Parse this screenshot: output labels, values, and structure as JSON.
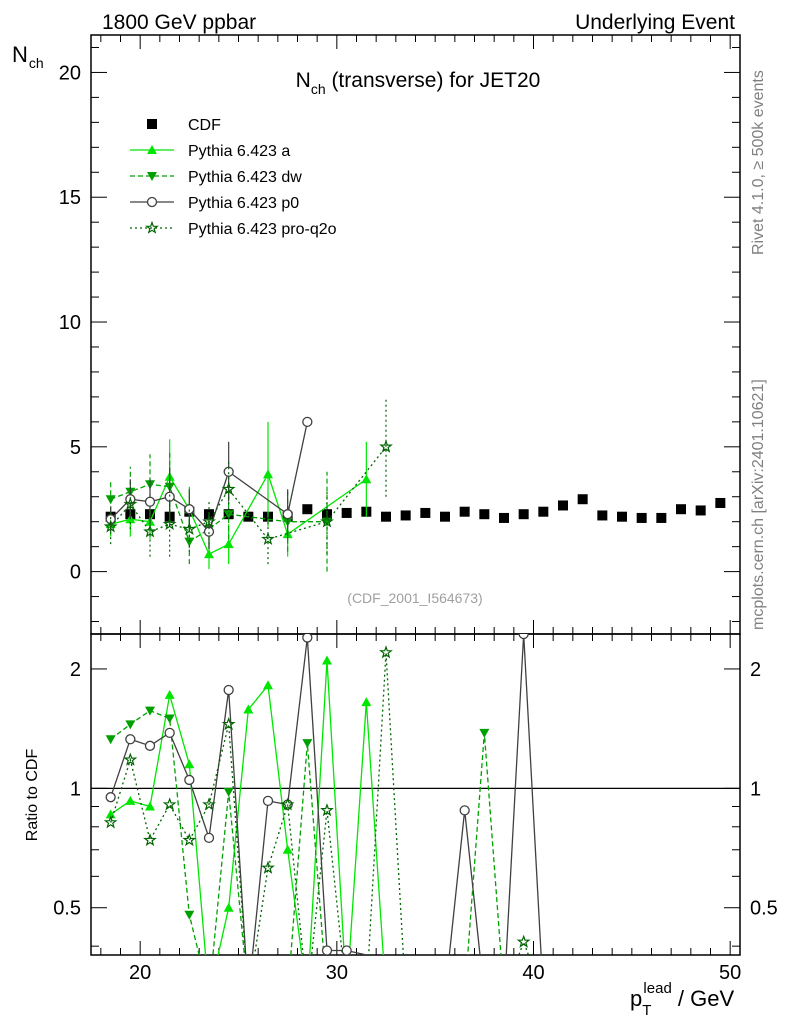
{
  "header": {
    "left": "1800 GeV ppbar",
    "right": "Underlying Event"
  },
  "side": {
    "rivet": "Rivet 4.1.0, ≥ 500k events",
    "mcplots": "mcplots.cern.ch [arXiv:2401.10621]"
  },
  "watermark": "(CDF_2001_I564673)",
  "colors": {
    "data": "#000000",
    "pythia_a": "#00e600",
    "pythia_dw": "#00a000",
    "pythia_p0": "#404040",
    "pythia_q2o": "#006400",
    "ratio_line": "#000000"
  },
  "chart_data": {
    "type": "scatter",
    "title_main": "N",
    "title_sub": "ch",
    "title_rest": " (transverse) for JET20",
    "ylabel_main": "N",
    "ylabel_sub": "ch",
    "ratio_ylabel": "Ratio to CDF",
    "xlabel_main": "p",
    "xlabel_sub": "T",
    "xlabel_sup": "lead",
    "xlabel_rest": " / GeV",
    "xlim": [
      17.5,
      50.5
    ],
    "ylim": [
      -2.5,
      21.5
    ],
    "ratio_ylim": [
      0.38,
      2.45
    ],
    "x_ticks": [
      20,
      30,
      40,
      50
    ],
    "y_ticks": [
      0,
      5,
      10,
      15,
      20
    ],
    "ratio_ticks": [
      0.5,
      1,
      2
    ],
    "ratio_tick_labels": [
      "0.5",
      "1",
      "2"
    ],
    "series": [
      {
        "name": "CDF",
        "marker": "square",
        "line": "none",
        "x": [
          18.5,
          19.5,
          20.5,
          21.5,
          22.5,
          23.5,
          24.5,
          25.5,
          26.5,
          27.5,
          28.5,
          29.5,
          30.5,
          31.5,
          32.5,
          33.5,
          34.5,
          35.5,
          36.5,
          37.5,
          38.5,
          39.5,
          40.5,
          41.5,
          42.5,
          43.5,
          44.5,
          45.5,
          46.5,
          47.5,
          48.5,
          49.5
        ],
        "y": [
          2.2,
          2.3,
          2.3,
          2.2,
          2.4,
          2.3,
          2.3,
          2.2,
          2.2,
          2.2,
          2.5,
          2.3,
          2.35,
          2.4,
          2.2,
          2.25,
          2.35,
          2.2,
          2.4,
          2.3,
          2.15,
          2.3,
          2.4,
          2.65,
          2.9,
          2.25,
          2.2,
          2.15,
          2.15,
          2.5,
          2.45,
          2.75
        ]
      },
      {
        "name": "Pythia 6.423 a",
        "marker": "triangle-up",
        "line": "solid",
        "x": [
          18.5,
          19.5,
          20.5,
          21.5,
          22.5,
          23.5,
          24.5,
          26.5,
          27.5,
          31.5
        ],
        "y": [
          1.9,
          2.1,
          2.0,
          3.8,
          2.5,
          0.7,
          1.1,
          3.9,
          1.5,
          3.7
        ],
        "err": [
          0.5,
          0.7,
          0.7,
          1.5,
          0.9,
          0.6,
          0.8,
          2.1,
          0.9,
          1.5
        ],
        "ratio_x": [
          18.5,
          19.5,
          20.5,
          21.5,
          22.5,
          23.5,
          24.5,
          25.5,
          26.5,
          27.5,
          28.5,
          29.5,
          30.5,
          31.5,
          32.5
        ],
        "ratio_y": [
          0.86,
          0.93,
          0.9,
          1.72,
          1.15,
          0.3,
          0.5,
          1.58,
          1.82,
          0.7,
          0.3,
          2.1,
          0.3,
          1.65,
          0.3
        ]
      },
      {
        "name": "Pythia 6.423 dw",
        "marker": "triangle-down",
        "line": "dashed",
        "x": [
          18.5,
          19.5,
          20.5,
          21.5,
          22.5,
          23.5,
          24.5,
          27.5,
          29.5
        ],
        "y": [
          2.9,
          3.2,
          3.5,
          3.4,
          1.2,
          1.7,
          2.3,
          2.0,
          2.0
        ],
        "err": [
          0.8,
          1.0,
          1.2,
          1.4,
          0.9,
          0.8,
          1.0,
          1.2,
          2.0
        ],
        "ratio_x": [
          18.5,
          19.5,
          20.5,
          21.5,
          22.5,
          23.5,
          24.5,
          25.5,
          26.5,
          27.5,
          28.5,
          29.5,
          30.5,
          31.5,
          32.5,
          33.5,
          34.5,
          35.5,
          36.5,
          37.5,
          38.5
        ],
        "ratio_y": [
          1.33,
          1.45,
          1.57,
          1.5,
          0.48,
          0.3,
          0.98,
          0.3,
          0.3,
          0.3,
          1.3,
          0.3,
          0.3,
          0.3,
          0.3,
          0.3,
          0.3,
          0.3,
          0.3,
          1.38,
          0.3
        ]
      },
      {
        "name": "Pythia 6.423 p0",
        "marker": "circle-open",
        "line": "solid",
        "x": [
          18.5,
          19.5,
          20.5,
          21.5,
          22.5,
          23.5,
          24.5,
          27.5,
          28.5
        ],
        "y": [
          2.1,
          2.9,
          2.8,
          3.0,
          2.5,
          1.6,
          4.0,
          2.3,
          6.0
        ],
        "err": [
          0.5,
          0.8,
          0.9,
          1.2,
          0.8,
          0.7,
          1.2,
          1.0,
          0.0
        ],
        "ratio_x": [
          18.5,
          19.5,
          20.5,
          21.5,
          22.5,
          23.5,
          24.5,
          25.5,
          26.5,
          27.5,
          28.5,
          29.5,
          30.5,
          31.5,
          32.5,
          35.5,
          36.5,
          37.5,
          38.5,
          39.5,
          40.5
        ],
        "ratio_y": [
          0.95,
          1.33,
          1.28,
          1.38,
          1.05,
          0.75,
          1.77,
          0.3,
          0.93,
          0.91,
          2.4,
          0.39,
          0.39,
          0.38,
          0.3,
          0.3,
          0.88,
          0.3,
          0.3,
          2.45,
          0.3
        ]
      },
      {
        "name": "Pythia 6.423 pro-q2o",
        "marker": "star",
        "line": "dotted",
        "x": [
          18.5,
          19.5,
          20.5,
          21.5,
          22.5,
          23.5,
          24.5,
          26.5,
          29.5,
          32.5
        ],
        "y": [
          1.8,
          2.7,
          1.6,
          1.9,
          1.7,
          2.0,
          3.3,
          1.3,
          2.0,
          5.0
        ],
        "err": [
          0.7,
          1.0,
          1.0,
          1.3,
          0.9,
          0.9,
          1.2,
          1.0,
          1.3,
          2.0
        ],
        "ratio_x": [
          18.5,
          19.5,
          20.5,
          21.5,
          22.5,
          23.5,
          24.5,
          25.5,
          26.5,
          27.5,
          28.5,
          29.5,
          30.5,
          31.5,
          32.5,
          33.5,
          37.5,
          38.5,
          39.5,
          40.5
        ],
        "ratio_y": [
          0.82,
          1.18,
          0.74,
          0.91,
          0.74,
          0.91,
          1.45,
          0.3,
          0.63,
          0.91,
          0.3,
          0.88,
          0.3,
          0.3,
          2.2,
          0.3,
          0.3,
          0.3,
          0.41,
          0.3
        ]
      }
    ]
  }
}
